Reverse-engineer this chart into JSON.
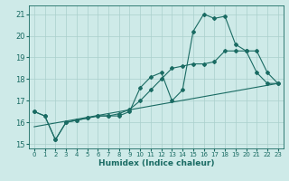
{
  "title": "",
  "xlabel": "Humidex (Indice chaleur)",
  "ylabel": "",
  "xlim": [
    -0.5,
    23.5
  ],
  "ylim": [
    14.8,
    21.4
  ],
  "yticks": [
    15,
    16,
    17,
    18,
    19,
    20,
    21
  ],
  "xticks": [
    0,
    1,
    2,
    3,
    4,
    5,
    6,
    7,
    8,
    9,
    10,
    11,
    12,
    13,
    14,
    15,
    16,
    17,
    18,
    19,
    20,
    21,
    22,
    23
  ],
  "bg_color": "#ceeae8",
  "grid_color": "#aacfcc",
  "line_color": "#1a6b63",
  "line1_x": [
    0,
    1,
    2,
    3,
    4,
    5,
    6,
    7,
    8,
    9,
    10,
    11,
    12,
    13,
    14,
    15,
    16,
    17,
    18,
    19,
    20,
    21,
    22,
    23
  ],
  "line1_y": [
    16.5,
    16.3,
    15.2,
    16.0,
    16.1,
    16.2,
    16.3,
    16.3,
    16.3,
    16.5,
    17.6,
    18.1,
    18.3,
    17.0,
    17.5,
    20.2,
    21.0,
    20.8,
    20.9,
    19.6,
    19.3,
    19.3,
    18.3,
    17.8
  ],
  "line2_x": [
    0,
    1,
    2,
    3,
    4,
    5,
    6,
    7,
    8,
    9,
    10,
    11,
    12,
    13,
    14,
    15,
    16,
    17,
    18,
    19,
    20,
    21,
    22,
    23
  ],
  "line2_y": [
    16.5,
    16.3,
    15.2,
    16.0,
    16.1,
    16.2,
    16.3,
    16.3,
    16.4,
    16.6,
    17.0,
    17.5,
    18.0,
    18.5,
    18.6,
    18.7,
    18.7,
    18.8,
    19.3,
    19.3,
    19.3,
    18.3,
    17.8,
    17.8
  ],
  "line3_x": [
    0,
    23
  ],
  "line3_y": [
    15.8,
    17.8
  ],
  "marker": "D",
  "markersize": 2.0,
  "linewidth": 0.8
}
